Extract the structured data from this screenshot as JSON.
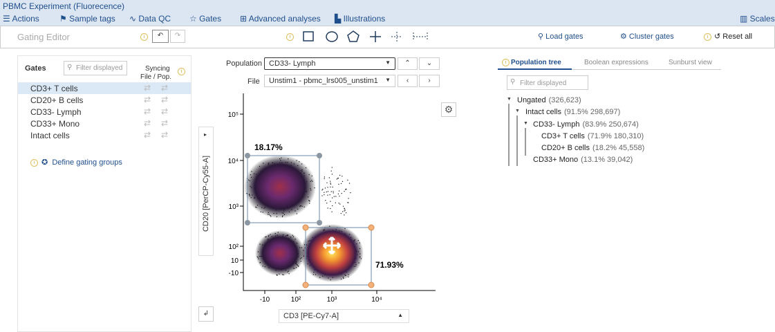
{
  "header": {
    "title": "PBMC Experiment (Fluorecence)"
  },
  "menu": [
    "Actions",
    "Sample tags",
    "Data QC",
    "Gates",
    "Advanced analyses",
    "Illustrations"
  ],
  "menu_right": "Scales",
  "toolbar": {
    "title": "Gating Editor",
    "load": "Load gates",
    "cluster": "Cluster gates",
    "reset": "Reset all"
  },
  "gates_panel": {
    "title": "Gates",
    "filter_placeholder": "Filter displayed",
    "syncing": "Syncing",
    "sync_cols": "File / Pop.",
    "gates": [
      "CD3+ T cells",
      "CD20+ B cells",
      "CD33- Lymph",
      "CD33+ Mono",
      "Intact cells"
    ],
    "define_groups": "Define gating groups"
  },
  "plot": {
    "population_label": "Population",
    "population": "CD33- Lymph",
    "file_label": "File",
    "file": "Unstim1 - pbmc_lrs005_unstim1",
    "y_axis": "CD20 [PerCP-Cy55-A]",
    "x_axis": "CD3 [PE-Cy7-A]",
    "yticks": [
      "10⁵",
      "10⁴",
      "10³",
      "10²",
      "10",
      "-10"
    ],
    "xticks": [
      "-10",
      "10²",
      "10³",
      "10⁴"
    ],
    "gate_labels": [
      "18.17%",
      "71.93%"
    ]
  },
  "tree_panel": {
    "tabs": [
      "Population tree",
      "Boolean expressions",
      "Sunburst view"
    ],
    "filter_placeholder": "Filter displayed",
    "nodes": [
      {
        "name": "Ungated",
        "stats": "(326,623)"
      },
      {
        "name": "Intact cells",
        "stats": "(91.5%  298,697)"
      },
      {
        "name": "CD33- Lymph",
        "stats": "(83.9%  250,674)"
      },
      {
        "name": "CD3+ T cells",
        "stats": "(71.9%  180,310)"
      },
      {
        "name": "CD20+ B cells",
        "stats": "(18.2%  45,558)"
      },
      {
        "name": "CD33+ Mono",
        "stats": "(13.1%  39,042)"
      }
    ]
  }
}
